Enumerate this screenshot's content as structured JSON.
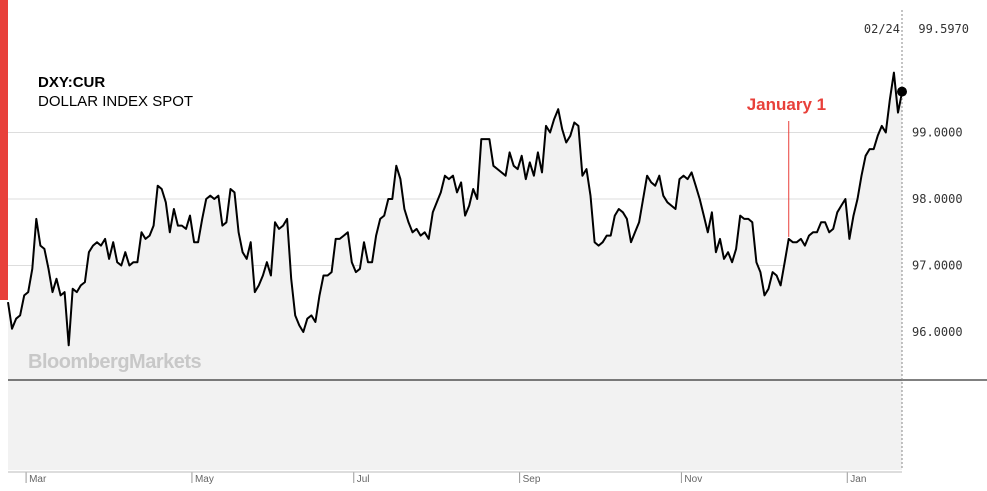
{
  "header": {
    "ticker": "DXY:CUR",
    "name": "DOLLAR INDEX SPOT"
  },
  "readout": {
    "date": "02/24",
    "value": "99.5970"
  },
  "watermark": "BloombergMarkets",
  "annotation": {
    "label": "January 1",
    "at_index": 193,
    "color": "#e8403a"
  },
  "colors": {
    "line": "#000000",
    "area": "#f2f2f2",
    "grid": "#dddddd",
    "accent": "#e8403a"
  },
  "chart_data": {
    "type": "area",
    "title": "",
    "xlabel": "",
    "ylabel": "",
    "ylim": [
      95.3,
      100.3
    ],
    "yticks": [
      96.0,
      97.0,
      98.0,
      99.0
    ],
    "ytick_labels": [
      "96.0000",
      "97.0000",
      "98.0000",
      "99.0000"
    ],
    "baseline": 95.3,
    "grid": true,
    "xtick_labels": [
      "Mar",
      "May",
      "Jul",
      "Sep",
      "Nov",
      "Jan"
    ],
    "xtick_indices": [
      2,
      43,
      83,
      124,
      164,
      205
    ],
    "series": [
      {
        "values": [
          96.45,
          96.05,
          96.2,
          96.25,
          96.55,
          96.6,
          96.95,
          97.7,
          97.3,
          97.25,
          96.95,
          96.6,
          96.8,
          96.55,
          96.6,
          95.8,
          96.65,
          96.6,
          96.7,
          96.75,
          97.2,
          97.3,
          97.35,
          97.3,
          97.4,
          97.1,
          97.35,
          97.05,
          97.0,
          97.2,
          97.0,
          97.05,
          97.05,
          97.5,
          97.4,
          97.45,
          97.6,
          98.2,
          98.15,
          97.95,
          97.5,
          97.85,
          97.6,
          97.6,
          97.55,
          97.75,
          97.35,
          97.35,
          97.7,
          98.0,
          98.05,
          98.0,
          98.05,
          97.6,
          97.65,
          98.15,
          98.1,
          97.5,
          97.2,
          97.1,
          97.35,
          96.6,
          96.7,
          96.85,
          97.05,
          96.85,
          97.65,
          97.55,
          97.6,
          97.7,
          96.8,
          96.25,
          96.1,
          96.0,
          96.2,
          96.25,
          96.15,
          96.55,
          96.85,
          96.85,
          96.9,
          97.4,
          97.4,
          97.45,
          97.5,
          97.05,
          96.9,
          96.95,
          97.35,
          97.05,
          97.05,
          97.45,
          97.7,
          97.75,
          98.0,
          98.0,
          98.5,
          98.3,
          97.85,
          97.65,
          97.5,
          97.55,
          97.45,
          97.5,
          97.4,
          97.8,
          97.95,
          98.1,
          98.35,
          98.3,
          98.35,
          98.1,
          98.25,
          97.75,
          97.9,
          98.15,
          98.0,
          98.9,
          98.9,
          98.9,
          98.5,
          98.45,
          98.4,
          98.35,
          98.7,
          98.5,
          98.45,
          98.65,
          98.3,
          98.55,
          98.35,
          98.7,
          98.4,
          99.1,
          99.0,
          99.2,
          99.35,
          99.05,
          98.85,
          98.95,
          99.15,
          99.1,
          98.35,
          98.45,
          98.05,
          97.35,
          97.3,
          97.35,
          97.45,
          97.45,
          97.75,
          97.85,
          97.8,
          97.7,
          97.35,
          97.5,
          97.65,
          98.0,
          98.35,
          98.25,
          98.2,
          98.35,
          98.05,
          97.95,
          97.9,
          97.85,
          98.3,
          98.35,
          98.3,
          98.4,
          98.2,
          98.0,
          97.75,
          97.5,
          97.8,
          97.2,
          97.4,
          97.1,
          97.2,
          97.05,
          97.25,
          97.75,
          97.7,
          97.7,
          97.65,
          97.05,
          96.9,
          96.55,
          96.65,
          96.9,
          96.85,
          96.7,
          97.05,
          97.4,
          97.35,
          97.35,
          97.4,
          97.3,
          97.45,
          97.5,
          97.5,
          97.65,
          97.65,
          97.5,
          97.55,
          97.8,
          97.9,
          98.0,
          97.4,
          97.75,
          98.0,
          98.35,
          98.65,
          98.75,
          98.75,
          98.95,
          99.1,
          99.0,
          99.5,
          99.9,
          99.3,
          99.6
        ]
      }
    ]
  }
}
